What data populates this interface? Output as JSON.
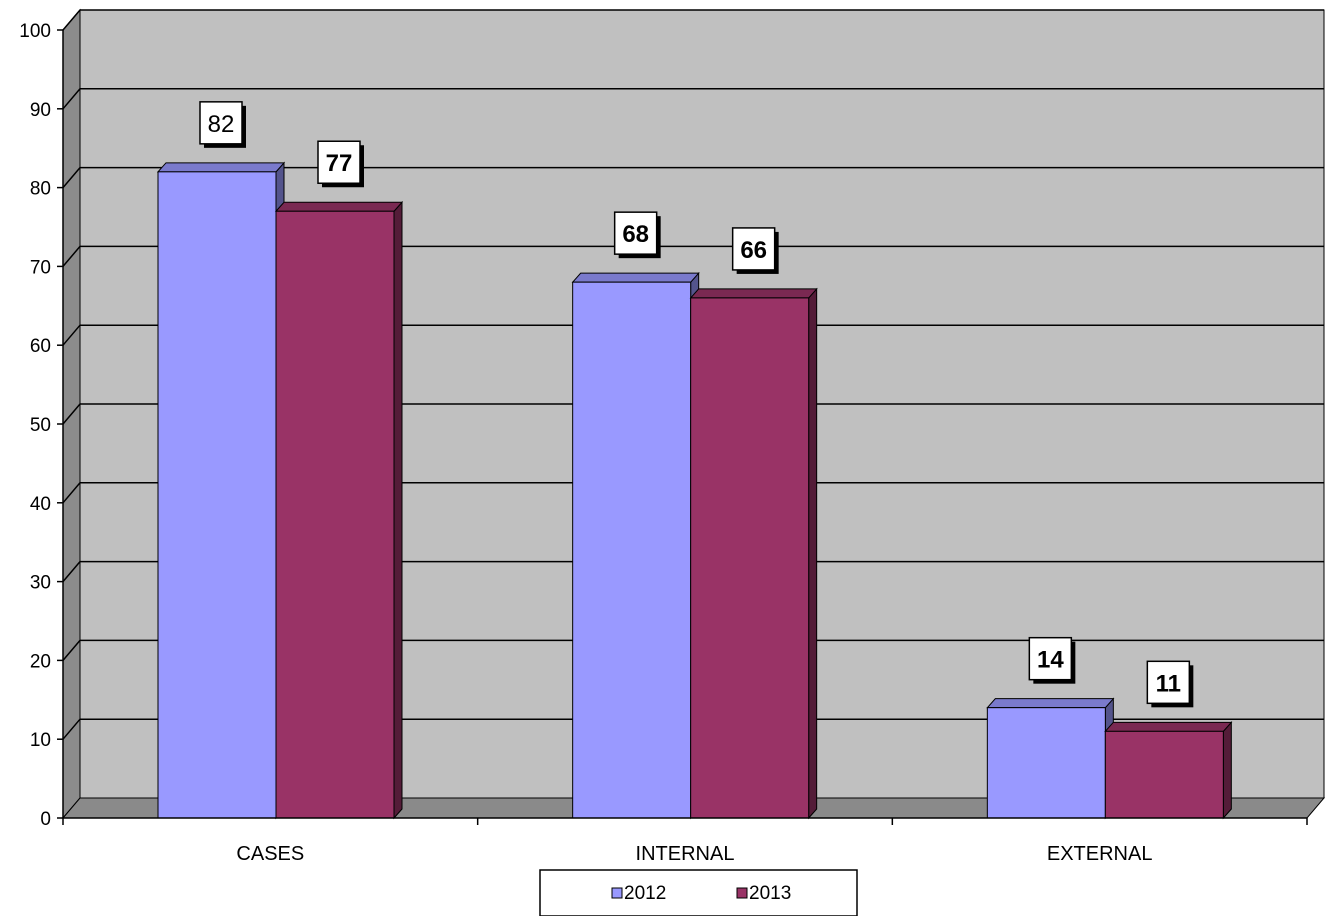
{
  "chart_data": {
    "type": "bar",
    "categories": [
      "CASES",
      "INTERNAL",
      "EXTERNAL"
    ],
    "series": [
      {
        "name": "2012",
        "values": [
          82,
          68,
          14
        ],
        "color": "#9999ff",
        "label_bold": [
          false,
          true,
          true
        ]
      },
      {
        "name": "2013",
        "values": [
          77,
          66,
          11
        ],
        "color": "#993366",
        "label_bold": [
          true,
          true,
          true
        ]
      }
    ],
    "yticks": [
      "0",
      "10",
      "20",
      "30",
      "40",
      "50",
      "60",
      "70",
      "80",
      "90",
      "100"
    ],
    "ylim": [
      0,
      100
    ],
    "grid": true,
    "legend_position": "bottom",
    "wall_color": "#c0c0c0"
  }
}
